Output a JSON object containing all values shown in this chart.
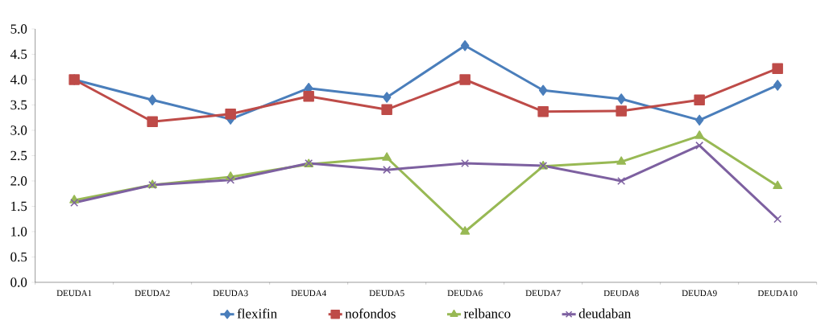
{
  "chart_data": {
    "type": "line",
    "categories": [
      "DEUDA1",
      "DEUDA2",
      "DEUDA3",
      "DEUDA4",
      "DEUDA5",
      "DEUDA6",
      "DEUDA7",
      "DEUDA8",
      "DEUDA9",
      "DEUDA10"
    ],
    "series": [
      {
        "name": "flexifin",
        "color": "#4a7ebb",
        "marker": "diamond",
        "values": [
          4.0,
          3.6,
          3.22,
          3.83,
          3.65,
          4.67,
          3.79,
          3.62,
          3.2,
          3.89
        ]
      },
      {
        "name": "nofondos",
        "color": "#be4b48",
        "marker": "square",
        "values": [
          4.0,
          3.17,
          3.32,
          3.67,
          3.41,
          4.0,
          3.37,
          3.38,
          3.6,
          4.22
        ]
      },
      {
        "name": "relbanco",
        "color": "#98b954",
        "marker": "triangle",
        "values": [
          1.62,
          1.92,
          2.08,
          2.33,
          2.46,
          1.0,
          2.29,
          2.38,
          2.89,
          1.9
        ]
      },
      {
        "name": "deudaban",
        "color": "#7d60a0",
        "marker": "cross",
        "values": [
          1.57,
          1.92,
          2.02,
          2.35,
          2.22,
          2.35,
          2.3,
          2.0,
          2.7,
          1.25
        ]
      }
    ],
    "ylim": [
      0,
      5
    ],
    "yticks": [
      {
        "value": 0,
        "label": "0.0"
      },
      {
        "value": 0.5,
        "label": "0.5"
      },
      {
        "value": 1,
        "label": "1.0"
      },
      {
        "value": 1.5,
        "label": "1.5"
      },
      {
        "value": 2,
        "label": "2.0"
      },
      {
        "value": 2.5,
        "label": "2.5"
      },
      {
        "value": 3,
        "label": "3.0"
      },
      {
        "value": 3.5,
        "label": "3.5"
      },
      {
        "value": 4,
        "label": "4.0"
      },
      {
        "value": 4.5,
        "label": "4.5"
      },
      {
        "value": 5,
        "label": "5.0"
      }
    ],
    "legend": "bottom",
    "line_style": "solid"
  }
}
